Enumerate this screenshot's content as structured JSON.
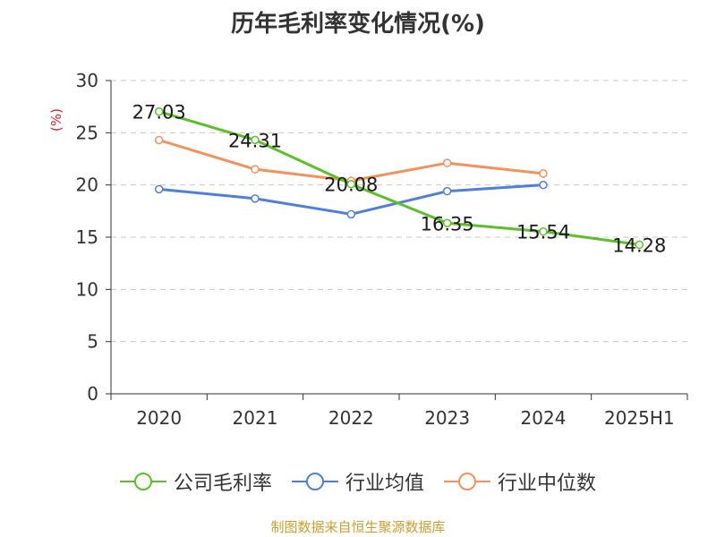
{
  "chart_data": {
    "type": "line",
    "title": "历年毛利率变化情况(%)",
    "ylabel": "(%)",
    "categories": [
      "2020",
      "2021",
      "2022",
      "2023",
      "2024",
      "2025H1"
    ],
    "ylim": [
      0,
      30
    ],
    "yticks": [
      0,
      5,
      10,
      15,
      20,
      25,
      30
    ],
    "grid": true,
    "legend_position": "bottom",
    "series": [
      {
        "name": "公司毛利率",
        "color": "#5cbf2a",
        "values": [
          27.03,
          24.31,
          20.08,
          16.35,
          15.54,
          14.28
        ],
        "labels": [
          "27.03",
          "24.31",
          "20.08",
          "16.35",
          "15.54",
          "14.28"
        ]
      },
      {
        "name": "行业均值",
        "color": "#4f7fda",
        "values": [
          19.6,
          18.7,
          17.2,
          19.4,
          20.0,
          null
        ]
      },
      {
        "name": "行业中位数",
        "color": "#f5905a",
        "values": [
          24.3,
          21.5,
          20.4,
          22.1,
          21.1,
          null
        ]
      }
    ]
  },
  "source": "制图数据来自恒生聚源数据库"
}
